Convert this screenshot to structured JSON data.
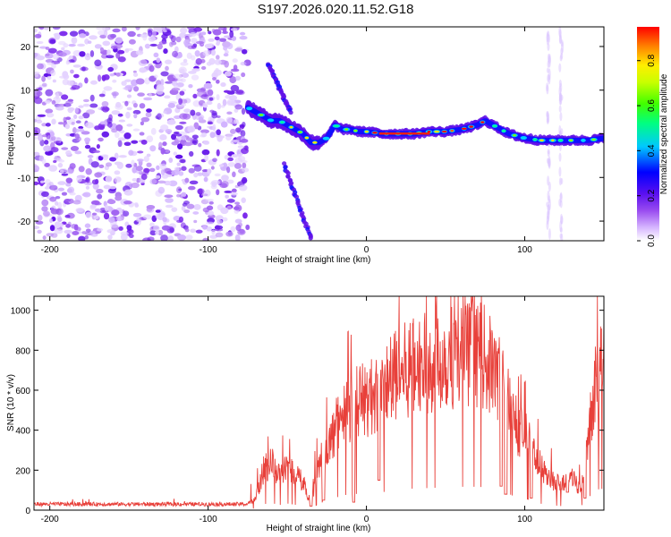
{
  "title": "S197.2026.020.11.52.G18",
  "chart_data": [
    {
      "type": "heatmap",
      "xlabel": "Height of straight line (km)",
      "ylabel": "Frequency (Hz)",
      "xlim": [
        -210,
        150
      ],
      "ylim": [
        -24.5,
        24.5
      ],
      "xticks": [
        -200,
        -100,
        0,
        100
      ],
      "yticks": [
        -20,
        -10,
        0,
        10,
        20
      ],
      "noise_region_x": [
        -210,
        -75
      ],
      "ridge": [
        {
          "x": -75,
          "y": 6
        },
        {
          "x": -70,
          "y": 5
        },
        {
          "x": -65,
          "y": 4
        },
        {
          "x": -60,
          "y": 3
        },
        {
          "x": -55,
          "y": 3
        },
        {
          "x": -50,
          "y": 2
        },
        {
          "x": -45,
          "y": 1
        },
        {
          "x": -40,
          "y": 0
        },
        {
          "x": -35,
          "y": -2
        },
        {
          "x": -30,
          "y": -2
        },
        {
          "x": -25,
          "y": -1
        },
        {
          "x": -20,
          "y": 2
        },
        {
          "x": -15,
          "y": 1
        },
        {
          "x": -10,
          "y": 1
        },
        {
          "x": -5,
          "y": 0.5
        },
        {
          "x": 0,
          "y": 0.5
        },
        {
          "x": 10,
          "y": 0
        },
        {
          "x": 20,
          "y": 0
        },
        {
          "x": 30,
          "y": 0
        },
        {
          "x": 40,
          "y": 0.5
        },
        {
          "x": 50,
          "y": 0.5
        },
        {
          "x": 60,
          "y": 1
        },
        {
          "x": 70,
          "y": 2
        },
        {
          "x": 75,
          "y": 3
        },
        {
          "x": 80,
          "y": 2
        },
        {
          "x": 85,
          "y": 1
        },
        {
          "x": 90,
          "y": 0
        },
        {
          "x": 100,
          "y": -1
        },
        {
          "x": 110,
          "y": -1.5
        },
        {
          "x": 120,
          "y": -1.5
        },
        {
          "x": 130,
          "y": -1.5
        },
        {
          "x": 140,
          "y": -1.5
        },
        {
          "x": 150,
          "y": -1
        }
      ],
      "branch_up": [
        {
          "x": -62,
          "y": 16
        },
        {
          "x": -48,
          "y": 5
        }
      ],
      "branch_down": [
        {
          "x": -52,
          "y": -7
        },
        {
          "x": -35,
          "y": -24
        }
      ]
    },
    {
      "type": "colorbar",
      "label": "Normalized spectral amplitude",
      "range": [
        0,
        0.95
      ],
      "ticks": [
        0,
        0.2,
        0.4,
        0.6,
        0.8
      ],
      "tick_labels": [
        "0.0",
        "0.2",
        "0.4",
        "0.6",
        "0.8"
      ]
    },
    {
      "type": "line",
      "xlabel": "Height of straight line (km)",
      "ylabel": "SNR (10 * v/v)",
      "xlim": [
        -210,
        150
      ],
      "ylim": [
        0,
        1070
      ],
      "xticks": [
        -200,
        -100,
        0,
        100
      ],
      "yticks": [
        0,
        200,
        400,
        600,
        800,
        1000
      ],
      "color": "#e8403a",
      "envelope": [
        {
          "x": -210,
          "y": 30
        },
        {
          "x": -75,
          "y": 30
        },
        {
          "x": -70,
          "y": 60
        },
        {
          "x": -65,
          "y": 200
        },
        {
          "x": -60,
          "y": 240
        },
        {
          "x": -55,
          "y": 170
        },
        {
          "x": -50,
          "y": 220
        },
        {
          "x": -45,
          "y": 180
        },
        {
          "x": -40,
          "y": 140
        },
        {
          "x": -35,
          "y": 40
        },
        {
          "x": -30,
          "y": 230
        },
        {
          "x": -25,
          "y": 300
        },
        {
          "x": -20,
          "y": 400
        },
        {
          "x": -15,
          "y": 500
        },
        {
          "x": -10,
          "y": 520
        },
        {
          "x": -5,
          "y": 550
        },
        {
          "x": 0,
          "y": 550
        },
        {
          "x": 10,
          "y": 600
        },
        {
          "x": 20,
          "y": 680
        },
        {
          "x": 30,
          "y": 720
        },
        {
          "x": 40,
          "y": 740
        },
        {
          "x": 50,
          "y": 760
        },
        {
          "x": 60,
          "y": 780
        },
        {
          "x": 70,
          "y": 780
        },
        {
          "x": 75,
          "y": 760
        },
        {
          "x": 80,
          "y": 700
        },
        {
          "x": 85,
          "y": 640
        },
        {
          "x": 90,
          "y": 540
        },
        {
          "x": 95,
          "y": 420
        },
        {
          "x": 100,
          "y": 380
        },
        {
          "x": 105,
          "y": 300
        },
        {
          "x": 110,
          "y": 220
        },
        {
          "x": 115,
          "y": 150
        },
        {
          "x": 120,
          "y": 150
        },
        {
          "x": 125,
          "y": 130
        },
        {
          "x": 130,
          "y": 180
        },
        {
          "x": 135,
          "y": 100
        },
        {
          "x": 140,
          "y": 400
        },
        {
          "x": 145,
          "y": 680
        },
        {
          "x": 150,
          "y": 720
        }
      ],
      "dropouts": [
        {
          "x": -35,
          "y": 20
        },
        {
          "x": -27,
          "y": 50
        },
        {
          "x": -8,
          "y": 40
        },
        {
          "x": 8,
          "y": 150
        },
        {
          "x": 85,
          "y": 120
        },
        {
          "x": 88,
          "y": 80
        },
        {
          "x": 104,
          "y": 60
        },
        {
          "x": 127,
          "y": 90
        },
        {
          "x": 138,
          "y": 60
        }
      ]
    }
  ]
}
